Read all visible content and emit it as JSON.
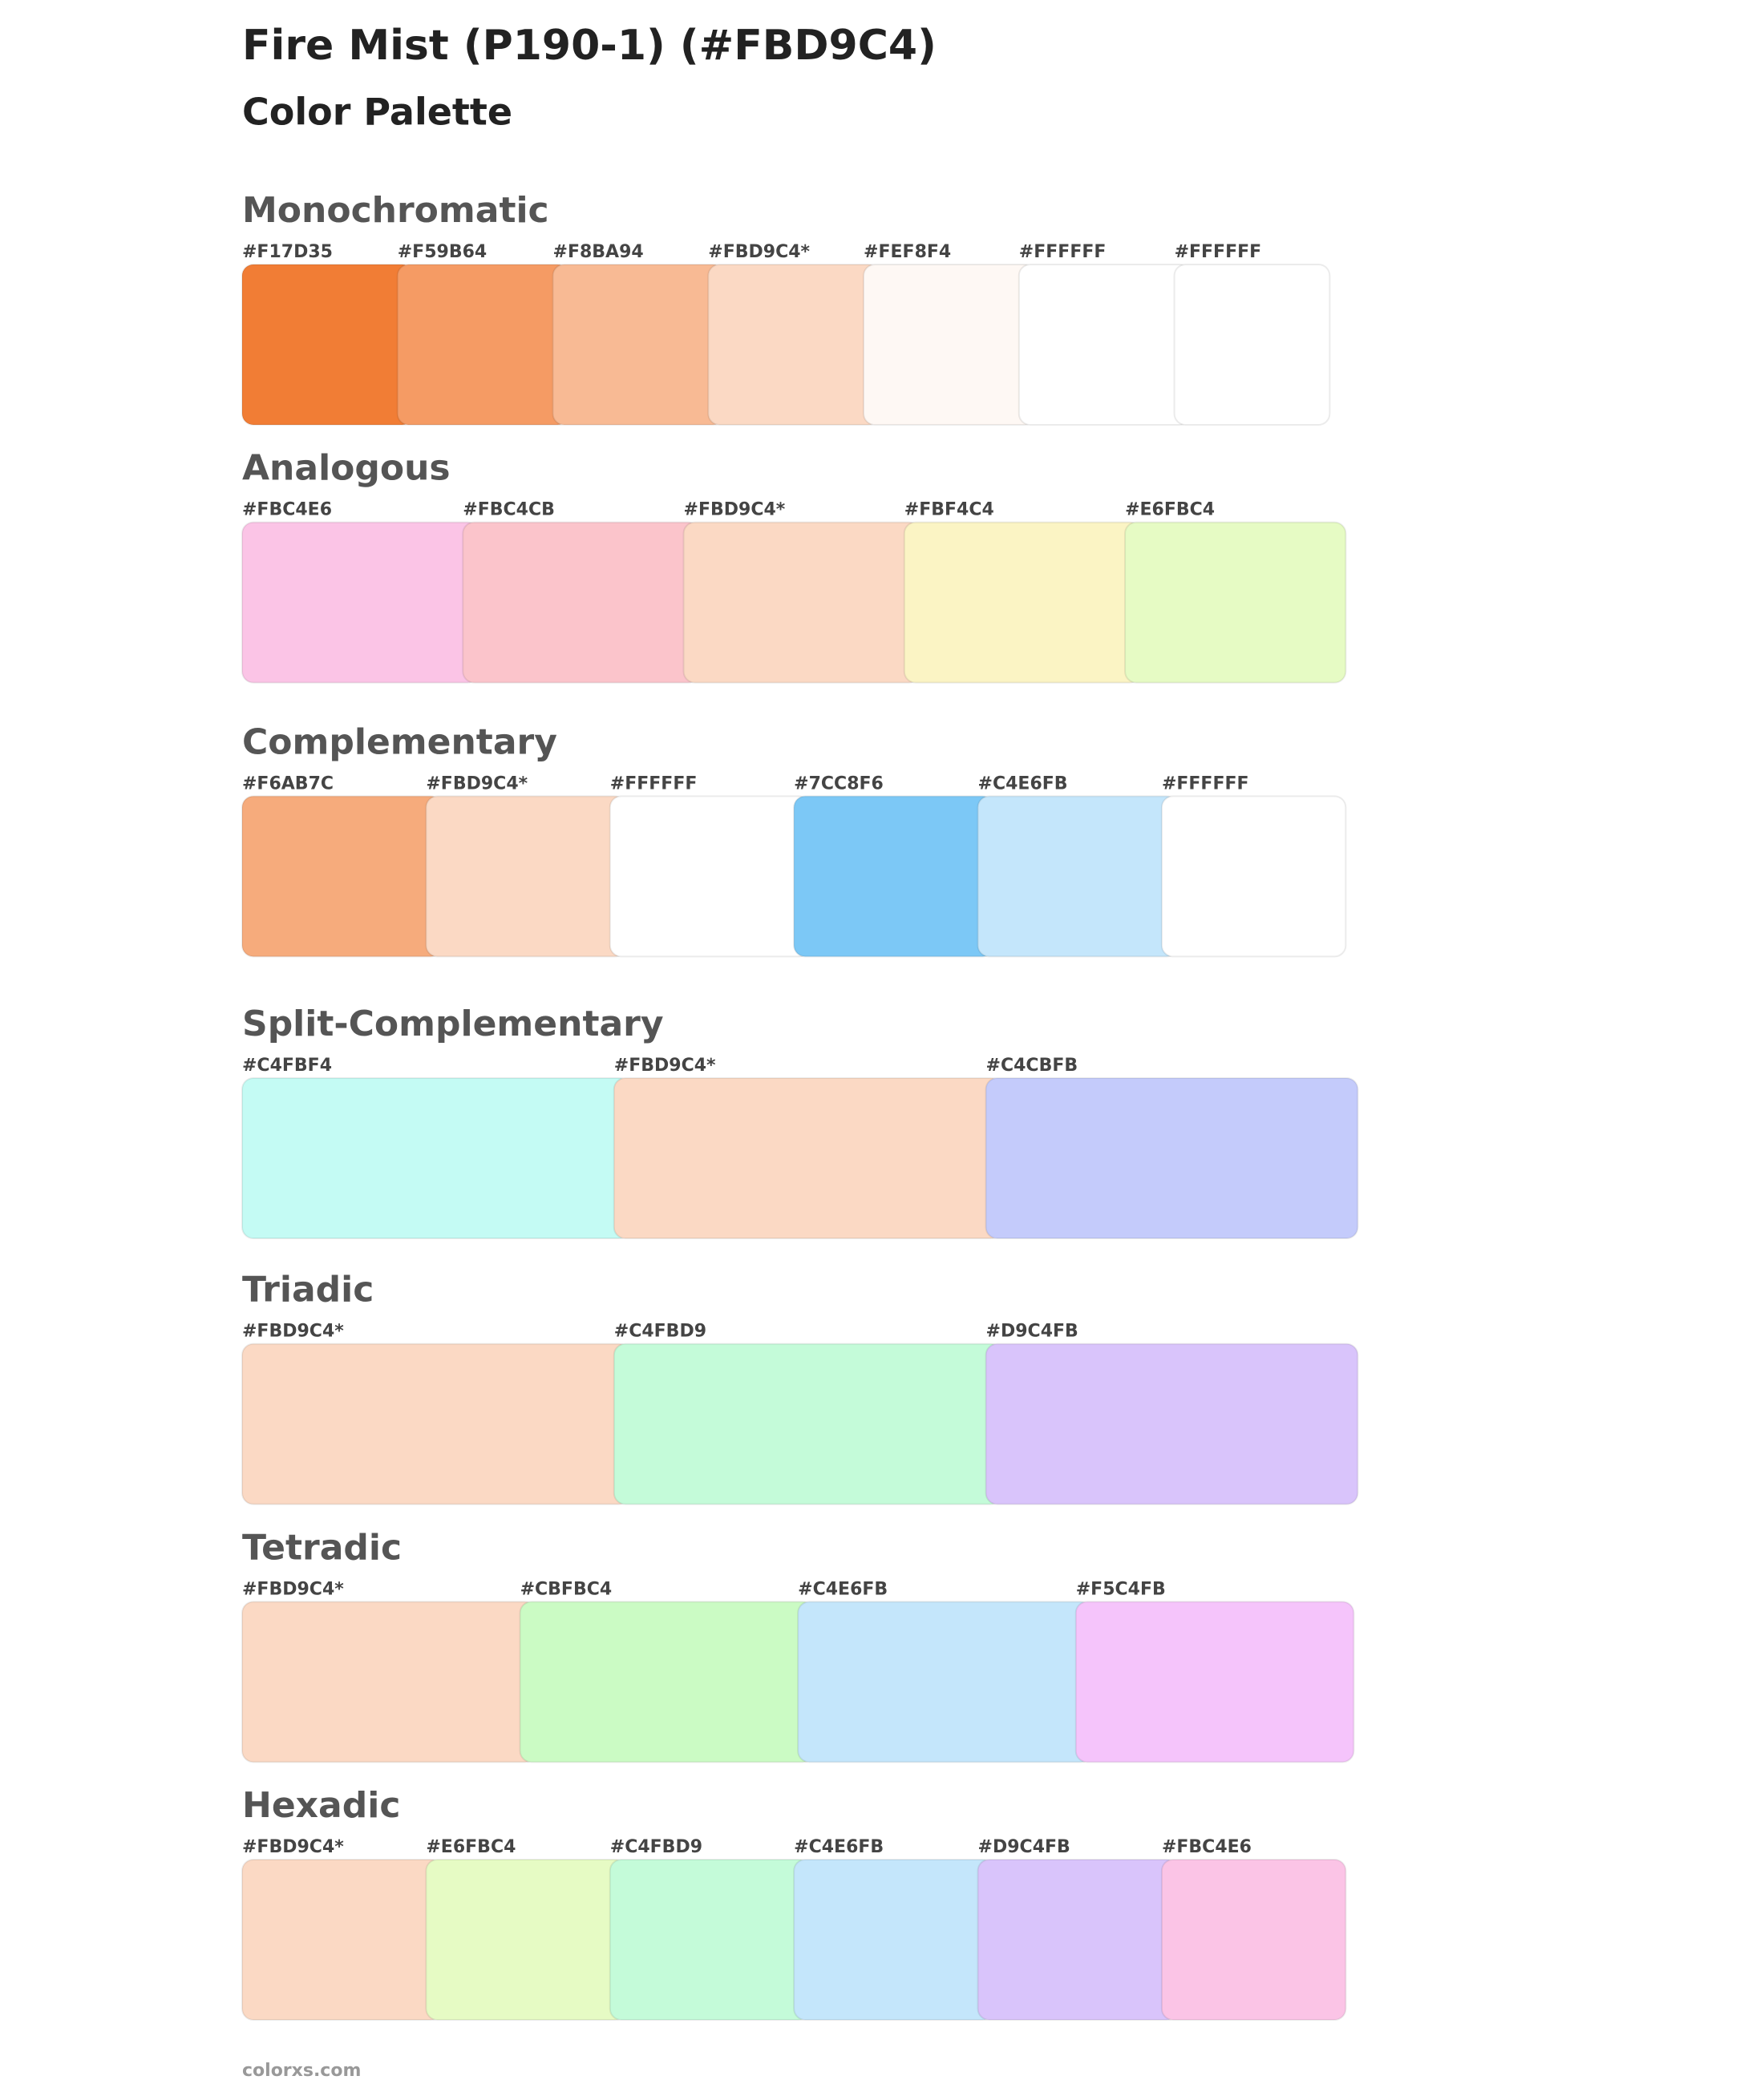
{
  "header": {
    "title": "Fire Mist (P190-1) (#FBD9C4)",
    "subtitle": "Color Palette"
  },
  "sections": [
    {
      "name": "Monochromatic",
      "swatches": [
        {
          "label": "#F17D35",
          "color": "#F17D35"
        },
        {
          "label": "#F59B64",
          "color": "#F59B64"
        },
        {
          "label": "#F8BA94",
          "color": "#F8BA94"
        },
        {
          "label": "#FBD9C4*",
          "color": "#FBD9C4"
        },
        {
          "label": "#FEF8F4",
          "color": "#FEF8F4"
        },
        {
          "label": "#FFFFFF",
          "color": "#FFFFFF"
        },
        {
          "label": "#FFFFFF",
          "color": "#FFFFFF"
        }
      ]
    },
    {
      "name": "Analogous",
      "swatches": [
        {
          "label": "#FBC4E6",
          "color": "#FBC4E6"
        },
        {
          "label": "#FBC4CB",
          "color": "#FBC4CB"
        },
        {
          "label": "#FBD9C4*",
          "color": "#FBD9C4"
        },
        {
          "label": "#FBF4C4",
          "color": "#FBF4C4"
        },
        {
          "label": "#E6FBC4",
          "color": "#E6FBC4"
        }
      ]
    },
    {
      "name": "Complementary",
      "swatches": [
        {
          "label": "#F6AB7C",
          "color": "#F6AB7C"
        },
        {
          "label": "#FBD9C4*",
          "color": "#FBD9C4"
        },
        {
          "label": "#FFFFFF",
          "color": "#FFFFFF"
        },
        {
          "label": "#7CC8F6",
          "color": "#7CC8F6"
        },
        {
          "label": "#C4E6FB",
          "color": "#C4E6FB"
        },
        {
          "label": "#FFFFFF",
          "color": "#FFFFFF"
        }
      ]
    },
    {
      "name": "Split-Complementary",
      "swatches": [
        {
          "label": "#C4FBF4",
          "color": "#C4FBF4"
        },
        {
          "label": "#FBD9C4*",
          "color": "#FBD9C4"
        },
        {
          "label": "#C4CBFB",
          "color": "#C4CBFB"
        }
      ]
    },
    {
      "name": "Triadic",
      "swatches": [
        {
          "label": "#FBD9C4*",
          "color": "#FBD9C4"
        },
        {
          "label": "#C4FBD9",
          "color": "#C4FBD9"
        },
        {
          "label": "#D9C4FB",
          "color": "#D9C4FB"
        }
      ]
    },
    {
      "name": "Tetradic",
      "swatches": [
        {
          "label": "#FBD9C4*",
          "color": "#FBD9C4"
        },
        {
          "label": "#CBFBC4",
          "color": "#CBFBC4"
        },
        {
          "label": "#C4E6FB",
          "color": "#C4E6FB"
        },
        {
          "label": "#F5C4FB",
          "color": "#F5C4FB"
        }
      ]
    },
    {
      "name": "Hexadic",
      "swatches": [
        {
          "label": "#FBD9C4*",
          "color": "#FBD9C4"
        },
        {
          "label": "#E6FBC4",
          "color": "#E6FBC4"
        },
        {
          "label": "#C4FBD9",
          "color": "#C4FBD9"
        },
        {
          "label": "#C4E6FB",
          "color": "#C4E6FB"
        },
        {
          "label": "#D9C4FB",
          "color": "#D9C4FB"
        },
        {
          "label": "#FBC4E6",
          "color": "#FBC4E6"
        }
      ]
    }
  ],
  "footer": "colorxs.com"
}
